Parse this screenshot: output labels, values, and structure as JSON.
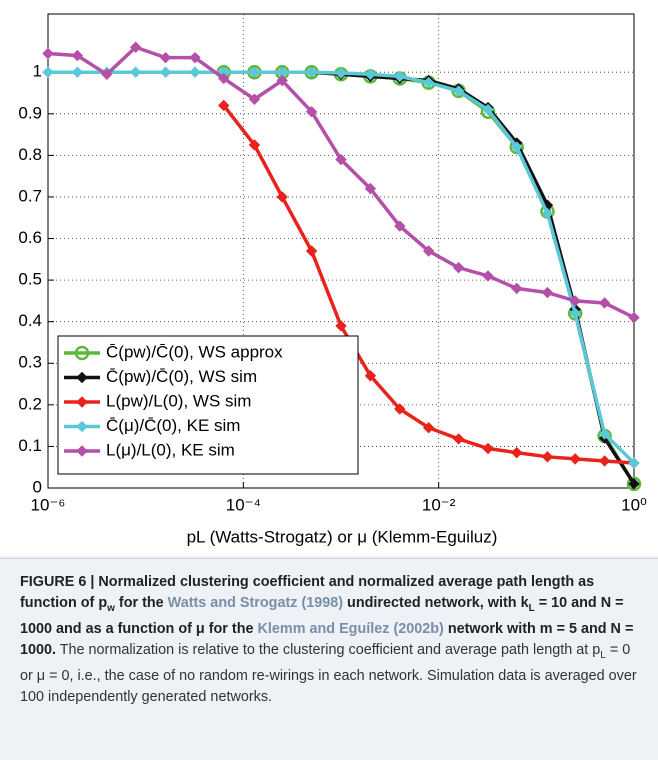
{
  "chart_data": {
    "type": "line",
    "xlabel": "pL (Watts-Strogatz) or μ (Klemm-Eguiluz)",
    "x": [
      1e-06,
      2e-06,
      4e-06,
      7.9e-06,
      1.6e-05,
      3.2e-05,
      6.3e-05,
      0.00013,
      0.00025,
      0.0005,
      0.001,
      0.002,
      0.004,
      0.0079,
      0.016,
      0.032,
      0.063,
      0.13,
      0.25,
      0.5,
      1
    ],
    "xlim": [
      1e-06,
      1
    ],
    "log_x": true,
    "xticks": [
      {
        "value": 1e-06,
        "label": "10⁻⁶"
      },
      {
        "value": 0.0001,
        "label": "10⁻⁴"
      },
      {
        "value": 0.01,
        "label": "10⁻²"
      },
      {
        "value": 1,
        "label": "10⁰"
      }
    ],
    "ylim": [
      0,
      1.14
    ],
    "yticks": [
      0,
      0.1,
      0.2,
      0.3,
      0.4,
      0.5,
      0.6,
      0.7,
      0.8,
      0.9,
      1
    ],
    "grid": true,
    "legend": "lower left",
    "series": [
      {
        "name": "C̄(pw)/C̄(0), WS approx",
        "color": "#5cb83a",
        "marker": "circle",
        "values": [
          null,
          null,
          null,
          null,
          null,
          null,
          1,
          1,
          1,
          1,
          0.995,
          0.99,
          0.985,
          0.975,
          0.955,
          0.905,
          0.82,
          0.665,
          0.42,
          0.125,
          0.01
        ]
      },
      {
        "name": "C̄(pw)/C̄(0), WS sim",
        "color": "#111111",
        "marker": "diamond",
        "values": [
          null,
          null,
          null,
          null,
          null,
          null,
          1,
          1,
          1,
          1,
          0.995,
          0.99,
          0.985,
          0.98,
          0.96,
          0.915,
          0.83,
          0.68,
          0.43,
          0.12,
          0.01
        ]
      },
      {
        "name": "L(pw)/L(0), WS sim",
        "color": "#e8231c",
        "marker": "diamond",
        "values": [
          null,
          null,
          null,
          null,
          null,
          null,
          0.92,
          0.825,
          0.7,
          0.57,
          0.39,
          0.27,
          0.19,
          0.145,
          0.118,
          0.095,
          0.085,
          0.075,
          0.07,
          0.065,
          0.06
        ]
      },
      {
        "name": "C̄(μ)/C̄(0), KE sim",
        "color": "#5bc8d8",
        "marker": "diamond",
        "values": [
          1,
          1,
          1,
          1,
          1,
          1,
          1,
          1,
          1,
          1,
          0.998,
          0.995,
          0.99,
          0.975,
          0.955,
          0.91,
          0.82,
          0.66,
          0.42,
          0.13,
          0.06
        ]
      },
      {
        "name": "L(μ)/L(0), KE sim",
        "color": "#b450a8",
        "marker": "diamond",
        "values": [
          1.045,
          1.04,
          0.995,
          1.06,
          1.035,
          1.035,
          0.985,
          0.935,
          0.98,
          0.905,
          0.79,
          0.72,
          0.63,
          0.57,
          0.53,
          0.51,
          0.48,
          0.47,
          0.45,
          0.445,
          0.41
        ]
      }
    ]
  },
  "caption": [
    {
      "text": "FIGURE 6 | Normalized clustering coefficient and normalized average path length as function of ",
      "style": "bold"
    },
    {
      "text": "p",
      "style": "bold"
    },
    {
      "text": "w",
      "style": "bold-sub"
    },
    {
      "text": " for the ",
      "style": "bold"
    },
    {
      "text": "Watts and Strogatz (1998)",
      "style": "link"
    },
    {
      "text": " undirected network, with ",
      "style": "bold"
    },
    {
      "text": "k",
      "style": "bold"
    },
    {
      "text": "L",
      "style": "bold-sub"
    },
    {
      "text": " = 10 and N = 1000 and as a function of μ for the ",
      "style": "bold"
    },
    {
      "text": "Klemm and Eguílez (2002b)",
      "style": "link"
    },
    {
      "text": " network with m = 5 and N = 1000.",
      "style": "bold"
    },
    {
      "text": " The normalization is relative to the clustering coefficient and average path length at p",
      "style": "plain"
    },
    {
      "text": "L",
      "style": "sub"
    },
    {
      "text": " = 0 or μ = 0, i.e., the case of no random re-wirings in each network. Simulation data is averaged over 100 independently generated networks.",
      "style": "plain"
    }
  ]
}
